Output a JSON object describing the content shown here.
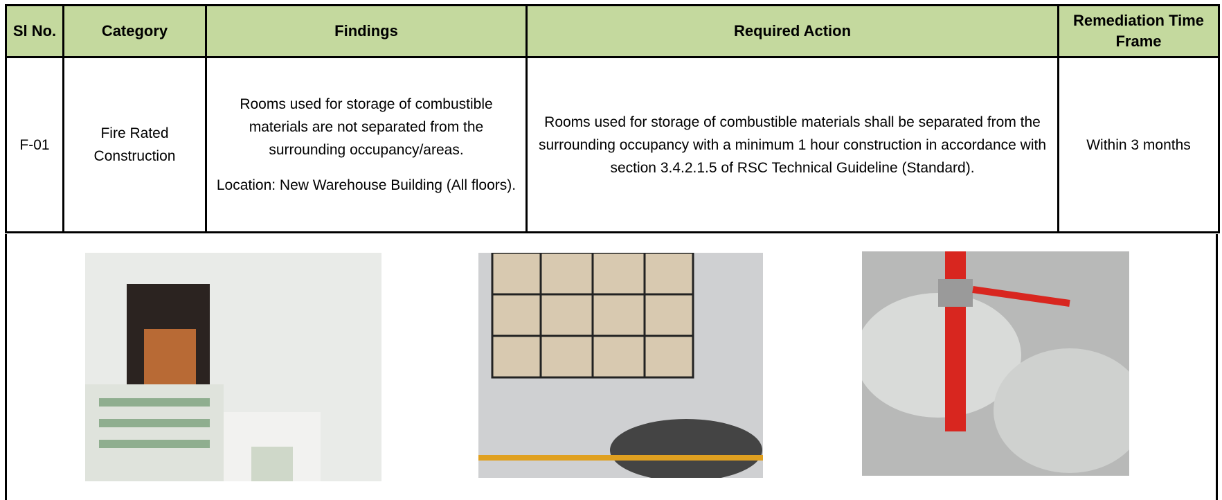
{
  "table": {
    "header": [
      "Sl No.",
      "Category",
      "Findings",
      "Required Action",
      "Remediation Time Frame"
    ],
    "rows": [
      [
        "F-01",
        "Fire Rated Construction",
        [
          "Rooms used for storage of combustible materials are not separated from the surrounding occupancy/areas.",
          "Location: New Warehouse Building (All floors)."
        ],
        "Rooms used for storage of combustible materials shall be separated from the surrounding occupancy with a minimum 1 hour construction in accordance with section 3.4.2.1.5 of RSC Technical Guideline (Standard).",
        "Within 3 months"
      ]
    ]
  }
}
